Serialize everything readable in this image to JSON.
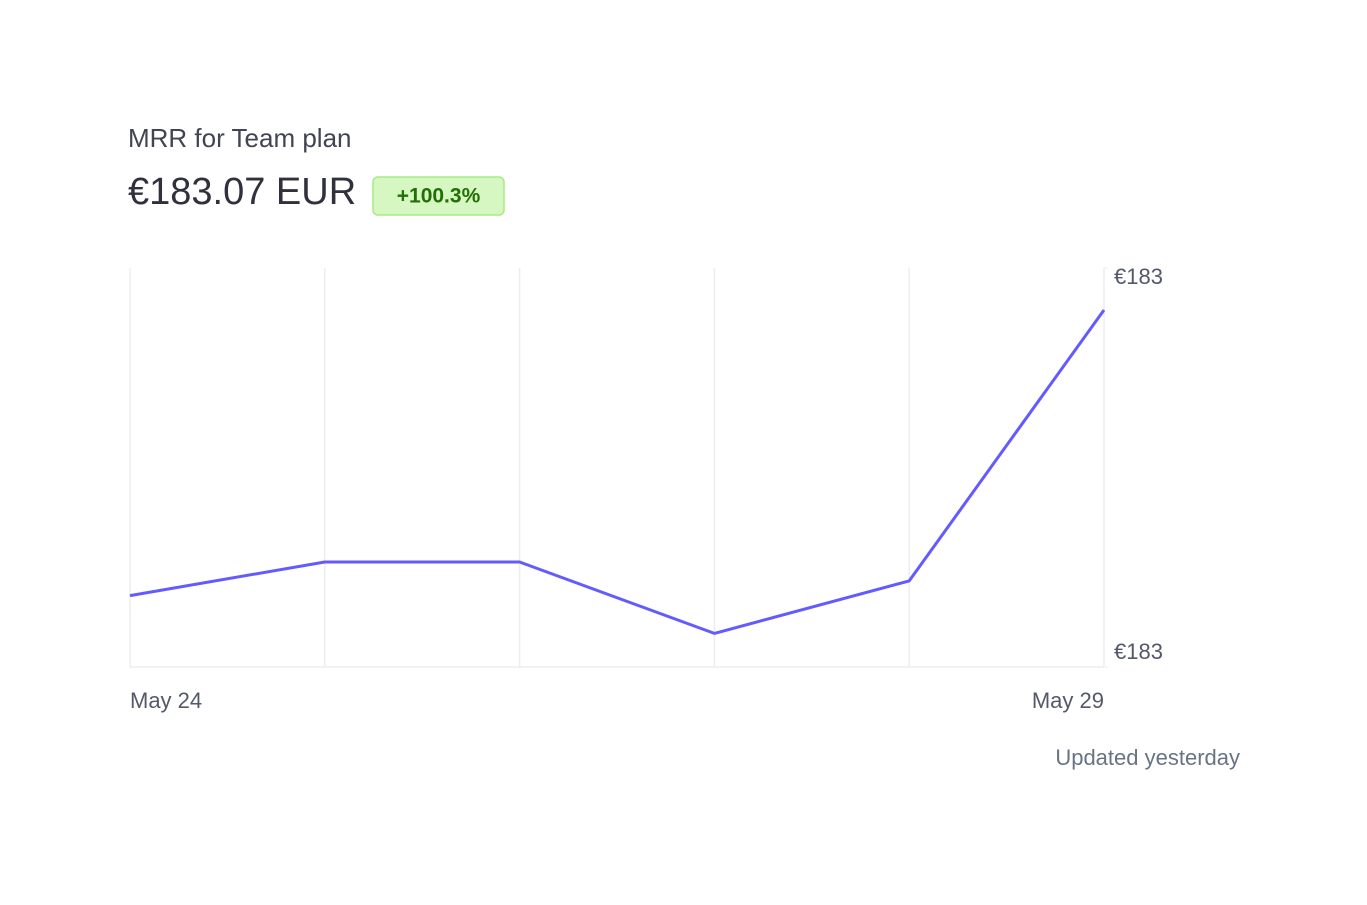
{
  "header": {
    "title": "MRR for Team plan",
    "amount": "€183.07 EUR",
    "change": "+100.3%"
  },
  "chart_data": {
    "type": "line",
    "categories": [
      "May 24",
      null,
      null,
      null,
      null,
      "May 29"
    ],
    "values": [
      182.934,
      182.95,
      182.95,
      182.916,
      182.941,
      183.07
    ],
    "color": "#635bff",
    "ylim": [
      182.9,
      183.09
    ],
    "yticks": [
      {
        "value": 183.09,
        "label": "€183"
      },
      {
        "value": 182.9,
        "label": "€183"
      }
    ],
    "grid": true
  },
  "footer": "Updated yesterday"
}
